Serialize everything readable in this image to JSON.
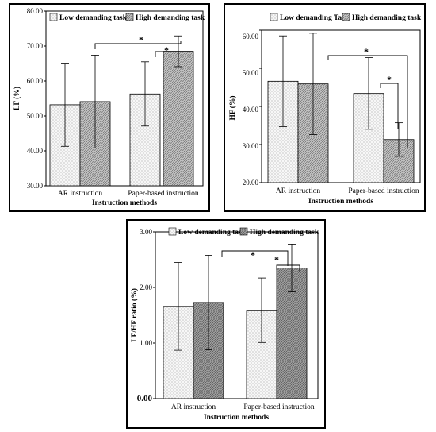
{
  "legend": {
    "lf": [
      "Low demanding task",
      "High demanding task"
    ],
    "hf": [
      "Low demanding Task",
      "High demanding task"
    ],
    "ratio": [
      "Low demanding task",
      "High demanding task"
    ]
  },
  "chart_data": [
    {
      "type": "bar",
      "id": "lf",
      "title": "",
      "xlabel": "Instruction methods",
      "ylabel": "LF (%)",
      "ylim": [
        30,
        80
      ],
      "yticks": [
        "30.00",
        "40.00",
        "50.00",
        "60.00",
        "70.00",
        "80.00"
      ],
      "categories": [
        "AR instruction",
        "Paper-based instruction"
      ],
      "series": [
        {
          "name": "Low demanding task",
          "values": [
            53.2,
            56.3
          ],
          "error": [
            11.9,
            9.2
          ],
          "color": "#f2f2f2"
        },
        {
          "name": "High demanding task",
          "values": [
            54.1,
            68.5
          ],
          "error": [
            13.3,
            4.4
          ],
          "color": "#b0b0b0"
        }
      ],
      "significance": [
        "*",
        "*"
      ],
      "grid": false
    },
    {
      "type": "bar",
      "id": "hf",
      "title": "",
      "xlabel": "Instruction methods",
      "ylabel": "HF (%)",
      "ylim": [
        20,
        60
      ],
      "yticks": [
        "20.00",
        "30.00",
        "40.00",
        "50.00",
        "60.00"
      ],
      "categories": [
        "AR instruction",
        "Paper-based instruction"
      ],
      "series": [
        {
          "name": "Low demanding Task",
          "values": [
            46.6,
            43.4
          ],
          "error": [
            11.9,
            9.4
          ],
          "color": "#f2f2f2"
        },
        {
          "name": "High demanding task",
          "values": [
            45.9,
            31.3
          ],
          "error": [
            13.3,
            4.4
          ],
          "color": "#b0b0b0"
        }
      ],
      "significance": [
        "*",
        "*"
      ],
      "grid": false
    },
    {
      "type": "bar",
      "id": "ratio",
      "title": "",
      "xlabel": "Instruction methods",
      "ylabel": "LF/HF ratio (%)",
      "ylim": [
        0,
        3
      ],
      "yticks": [
        "0.00",
        "1.00",
        "2.00",
        "3.00"
      ],
      "categories": [
        "AR instruction",
        "Paper-based instruction"
      ],
      "series": [
        {
          "name": "Low demanding task",
          "values": [
            1.66,
            1.59
          ],
          "error": [
            0.79,
            0.58
          ],
          "color": "#f2f2f2"
        },
        {
          "name": "High demanding task",
          "values": [
            1.73,
            2.35
          ],
          "error": [
            0.85,
            0.43
          ],
          "color": "#8e8e8e"
        }
      ],
      "significance": [
        "*",
        "*"
      ],
      "grid": false
    }
  ]
}
